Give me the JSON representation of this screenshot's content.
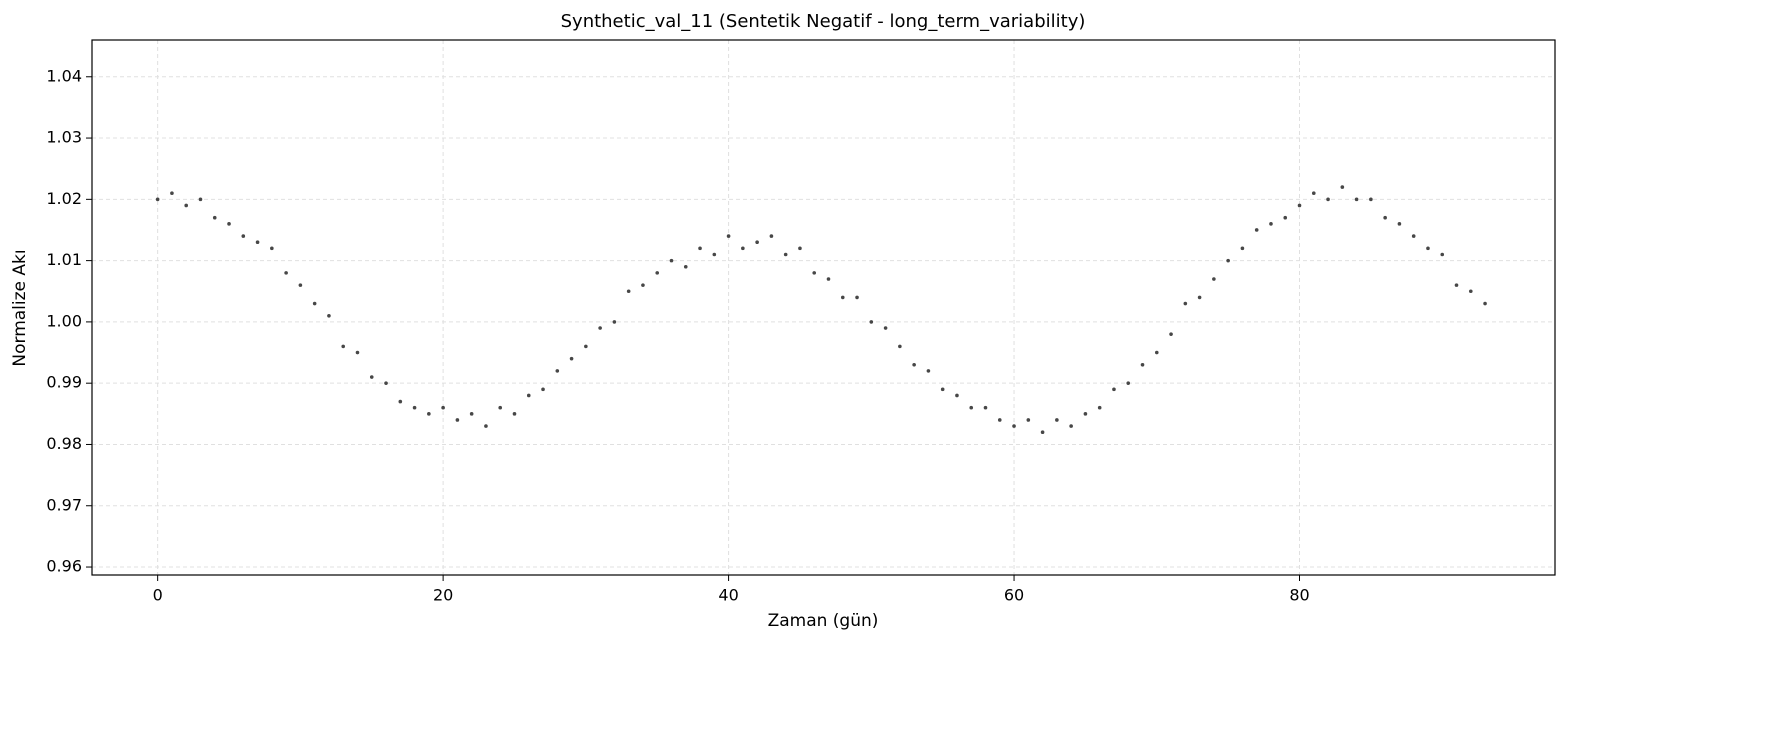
{
  "chart_data": {
    "type": "scatter",
    "title": "Synthetic_val_11 (Sentetik Negatif - long_term_variability)",
    "x_label": "Zaman (gün)",
    "y_label": "Normalize Akı",
    "color": "#333333",
    "grid": true,
    "xlim": [
      -4.6,
      97.9
    ],
    "ylim": [
      0.9587,
      1.046
    ],
    "xticks": [
      0,
      20,
      40,
      60,
      80
    ],
    "yticks": [
      0.96,
      0.97,
      0.98,
      0.99,
      {
        "value": 1,
        "label": "1.00"
      },
      1.01,
      1.02,
      1.03,
      1.04
    ],
    "x": [
      0,
      1,
      2,
      3,
      4,
      5,
      6,
      7,
      8,
      9,
      10,
      11,
      12,
      13,
      14,
      15,
      16,
      17,
      18,
      19,
      20,
      21,
      22,
      23,
      24,
      25,
      26,
      27,
      28,
      29,
      30,
      31,
      32,
      33,
      34,
      35,
      36,
      37,
      38,
      39,
      40,
      41,
      42,
      43,
      44,
      45,
      46,
      47,
      48,
      49,
      50,
      51,
      52,
      53,
      54,
      55,
      56,
      57,
      58,
      59,
      60,
      61,
      62,
      63,
      64,
      65,
      66,
      67,
      68,
      69,
      70,
      71,
      72,
      73,
      74,
      75,
      76,
      77,
      78,
      79,
      80,
      81,
      82,
      83,
      84,
      85,
      86,
      87,
      88,
      89,
      90,
      91,
      92,
      93
    ],
    "values": [
      1.02,
      1.021,
      1.019,
      1.02,
      1.017,
      1.016,
      1.014,
      1.013,
      1.012,
      1.008,
      1.006,
      1.003,
      1.001,
      0.996,
      0.995,
      0.991,
      0.99,
      0.987,
      0.986,
      0.985,
      0.986,
      0.984,
      0.985,
      0.983,
      0.986,
      0.985,
      0.988,
      0.989,
      0.992,
      0.994,
      0.996,
      0.999,
      1.0,
      1.005,
      1.006,
      1.008,
      1.01,
      1.009,
      1.012,
      1.011,
      1.014,
      1.012,
      1.013,
      1.014,
      1.011,
      1.012,
      1.008,
      1.007,
      1.004,
      1.004,
      1.0,
      0.999,
      0.996,
      0.993,
      0.992,
      0.989,
      0.988,
      0.986,
      0.986,
      0.984,
      0.983,
      0.984,
      0.982,
      0.984,
      0.983,
      0.985,
      0.986,
      0.989,
      0.99,
      0.993,
      0.995,
      0.998,
      1.003,
      1.004,
      1.007,
      1.01,
      1.012,
      1.015,
      1.016,
      1.017,
      1.019,
      1.021,
      1.02,
      1.022,
      1.02,
      1.02,
      1.017,
      1.016,
      1.014,
      1.012,
      1.011,
      1.006,
      1.005,
      1.003
    ]
  }
}
